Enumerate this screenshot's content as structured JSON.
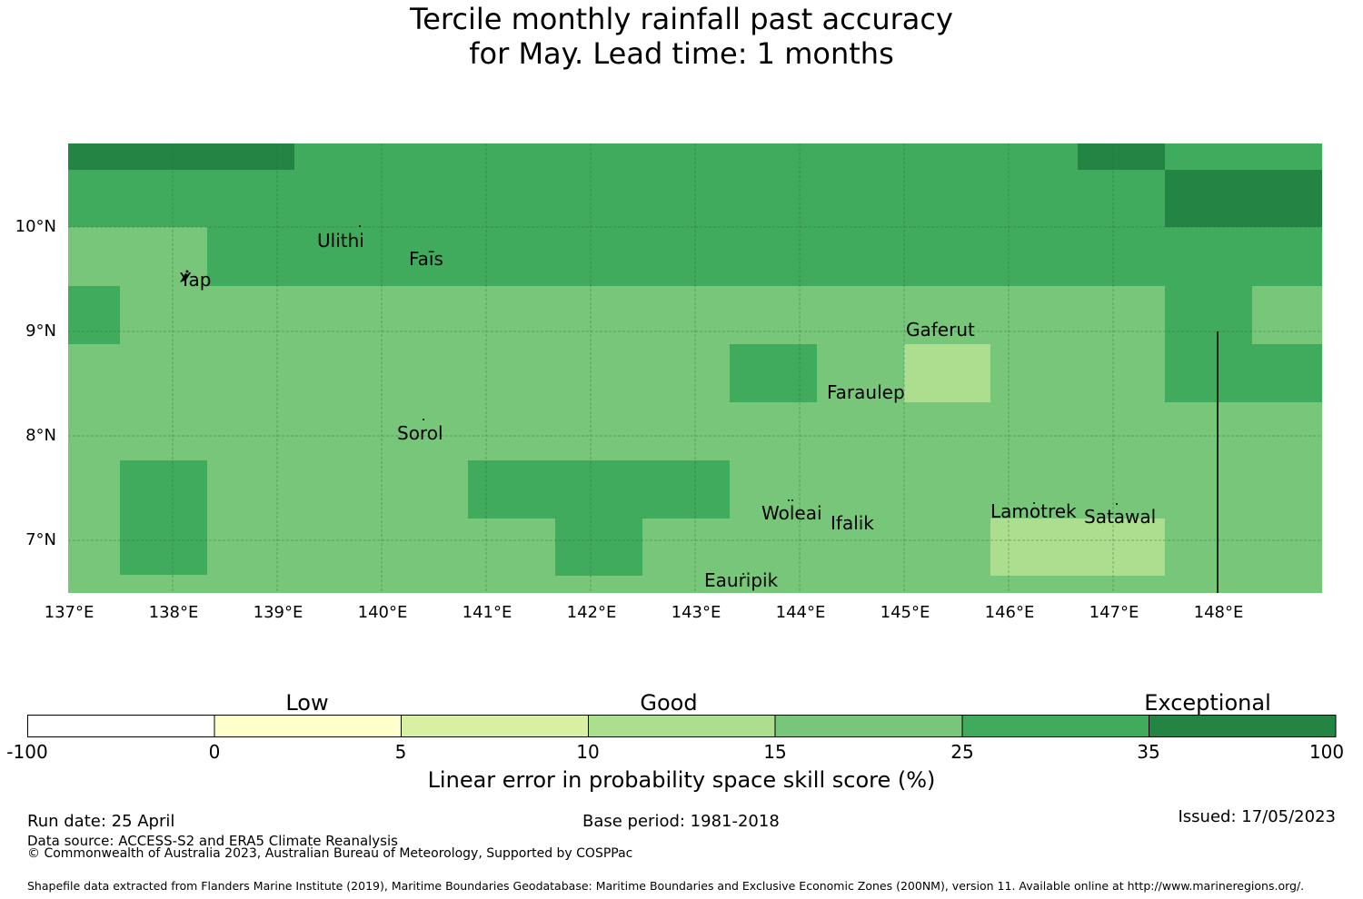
{
  "title": {
    "line1": "Tercile monthly rainfall past accuracy",
    "line2": "for May. Lead time: 1 months"
  },
  "map": {
    "lat_labels": [
      "10°N",
      "9°N",
      "8°N",
      "7°N"
    ],
    "lon_labels": [
      "137°E",
      "138°E",
      "139°E",
      "140°E",
      "141°E",
      "142°E",
      "143°E",
      "144°E",
      "145°E",
      "146°E",
      "147°E",
      "148°E"
    ],
    "places": [
      {
        "name": "Ulithi"
      },
      {
        "name": "Faīs"
      },
      {
        "name": "Yap"
      },
      {
        "name": "Gaferut"
      },
      {
        "name": "Faraulep"
      },
      {
        "name": "Sorol"
      },
      {
        "name": "Woleai"
      },
      {
        "name": "Ifalik"
      },
      {
        "name": "Lamotrek"
      },
      {
        "name": "Satawal"
      },
      {
        "name": "Eauripik"
      }
    ],
    "colors": {
      "c15_25": "#78c679",
      "c25_35": "#41ab5d",
      "c35_100": "#238443",
      "c10_15": "#addd8e"
    }
  },
  "colorbar": {
    "categories": [
      "Low",
      "Good",
      "Exceptional"
    ],
    "ticks": [
      "-100",
      "0",
      "5",
      "10",
      "15",
      "25",
      "35",
      "100"
    ],
    "colors": [
      "#ffffff",
      "#ffffcc",
      "#d9f0a3",
      "#addd8e",
      "#78c679",
      "#41ab5d",
      "#238443"
    ],
    "label": "Linear error in probability space skill score (%)"
  },
  "footer": {
    "run_date": "Run date: 25 April",
    "base_period": "Base period: 1981-2018",
    "issued": "Issued: 17/05/2023",
    "data_source": "Data source: ACCESS-S2 and ERA5 Climate Reanalysis",
    "copyright": "© Commonwealth of Australia 2023, Australian Bureau of Meteorology, Supported by COSPPac",
    "shapefile": "Shapefile data extracted from Flanders Marine Institute (2019), Maritime Boundaries Geodatabase: Maritime Boundaries and Exclusive Economic Zones (200NM), version 11. Available online at http://www.marineregions.org/."
  }
}
